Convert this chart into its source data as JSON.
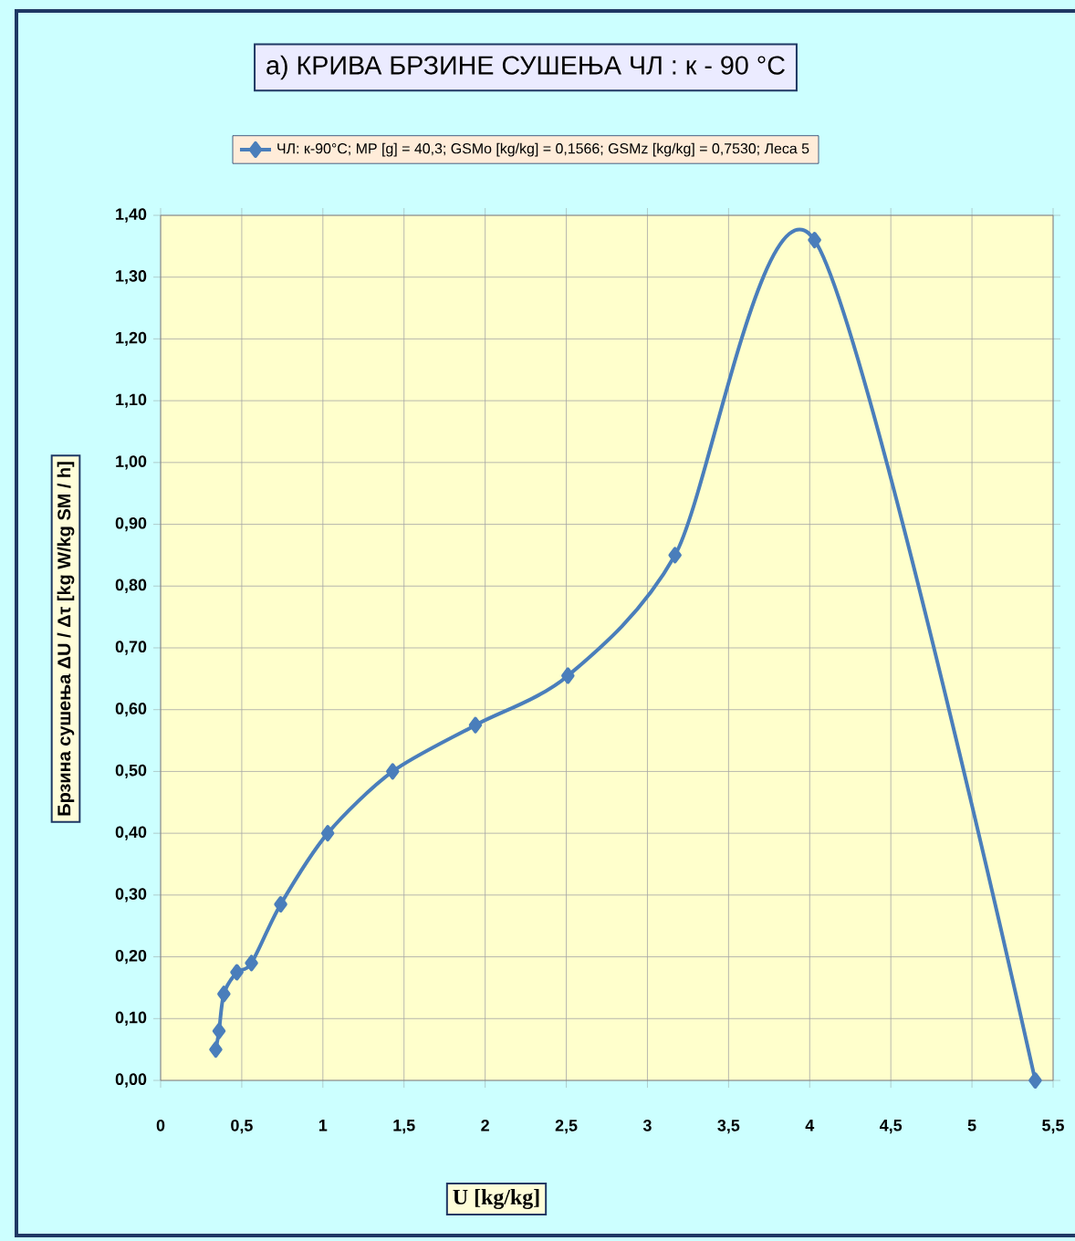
{
  "chart_data": {
    "type": "line",
    "title": "a) КРИВА БРЗИНЕ СУШЕЊА ЧЛ : к - 90 °C",
    "xlabel": "U [kg/kg]",
    "ylabel": "Брзина сушења ΔU / Δτ [kg W/kg SM / h]",
    "x": [
      0.34,
      0.36,
      0.39,
      0.47,
      0.56,
      0.74,
      1.03,
      1.43,
      1.94,
      2.51,
      3.17,
      4.03,
      5.39
    ],
    "series": [
      {
        "name": "ЧЛ: к-90°C; MP [g] = 40,3; GSMo [kg/kg] = 0,1566; GSMz [kg/kg] = 0,7530; Леса 5",
        "color": "#4a7ebb",
        "values": [
          0.05,
          0.08,
          0.14,
          0.175,
          0.19,
          0.285,
          0.4,
          0.5,
          0.575,
          0.655,
          0.85,
          1.36,
          0.0
        ]
      }
    ],
    "xlim": [
      0,
      5.5
    ],
    "xticks": [
      0,
      {
        "value": 0.5,
        "label": "0,5"
      },
      1,
      {
        "value": 1.5,
        "label": "1,5"
      },
      2,
      {
        "value": 2.5,
        "label": "2,5"
      },
      3,
      {
        "value": 3.5,
        "label": "3,5"
      },
      4,
      {
        "value": 4.5,
        "label": "4,5"
      },
      5,
      {
        "value": 5.5,
        "label": "5,5"
      }
    ],
    "ylim": [
      0,
      1.4
    ],
    "yticks": [
      {
        "value": 0,
        "label": "0,00"
      },
      {
        "value": 0.1,
        "label": "0,10"
      },
      {
        "value": 0.2,
        "label": "0,20"
      },
      {
        "value": 0.3,
        "label": "0,30"
      },
      {
        "value": 0.4,
        "label": "0,40"
      },
      {
        "value": 0.5,
        "label": "0,50"
      },
      {
        "value": 0.6,
        "label": "0,60"
      },
      {
        "value": 0.7,
        "label": "0,70"
      },
      {
        "value": 0.8,
        "label": "0,80"
      },
      {
        "value": 0.9,
        "label": "0,90"
      },
      {
        "value": 1.0,
        "label": "1,00"
      },
      {
        "value": 1.1,
        "label": "1,10"
      },
      {
        "value": 1.2,
        "label": "1,20"
      },
      {
        "value": 1.3,
        "label": "1,30"
      },
      {
        "value": 1.4,
        "label": "1,40"
      }
    ],
    "grid": true,
    "legend": "top",
    "marker": "diamond",
    "line_style": "solid"
  }
}
